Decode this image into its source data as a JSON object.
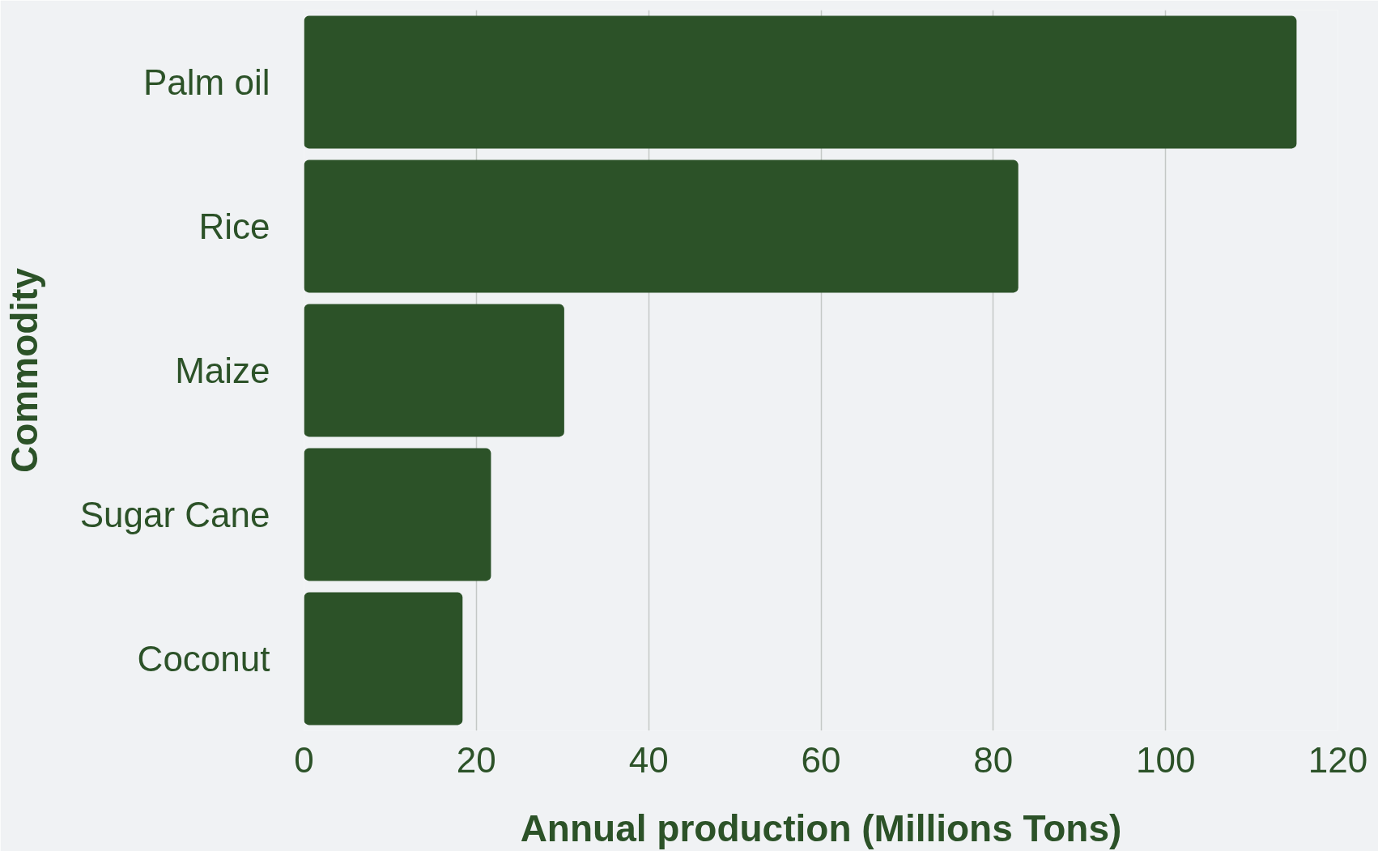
{
  "chart_data": {
    "type": "bar",
    "orientation": "horizontal",
    "xlabel": "Annual production (Millions Tons)",
    "ylabel": "Commodity",
    "categories": [
      "Palm oil",
      "Rice",
      "Maize",
      "Sugar Cane",
      "Coconut"
    ],
    "values": [
      115.2,
      82.9,
      30.2,
      21.7,
      18.4
    ],
    "color": "#2c5228",
    "xlim": [
      0,
      120
    ],
    "xticks": [
      0,
      20,
      40,
      60,
      80,
      100,
      120
    ],
    "grid": "x"
  }
}
